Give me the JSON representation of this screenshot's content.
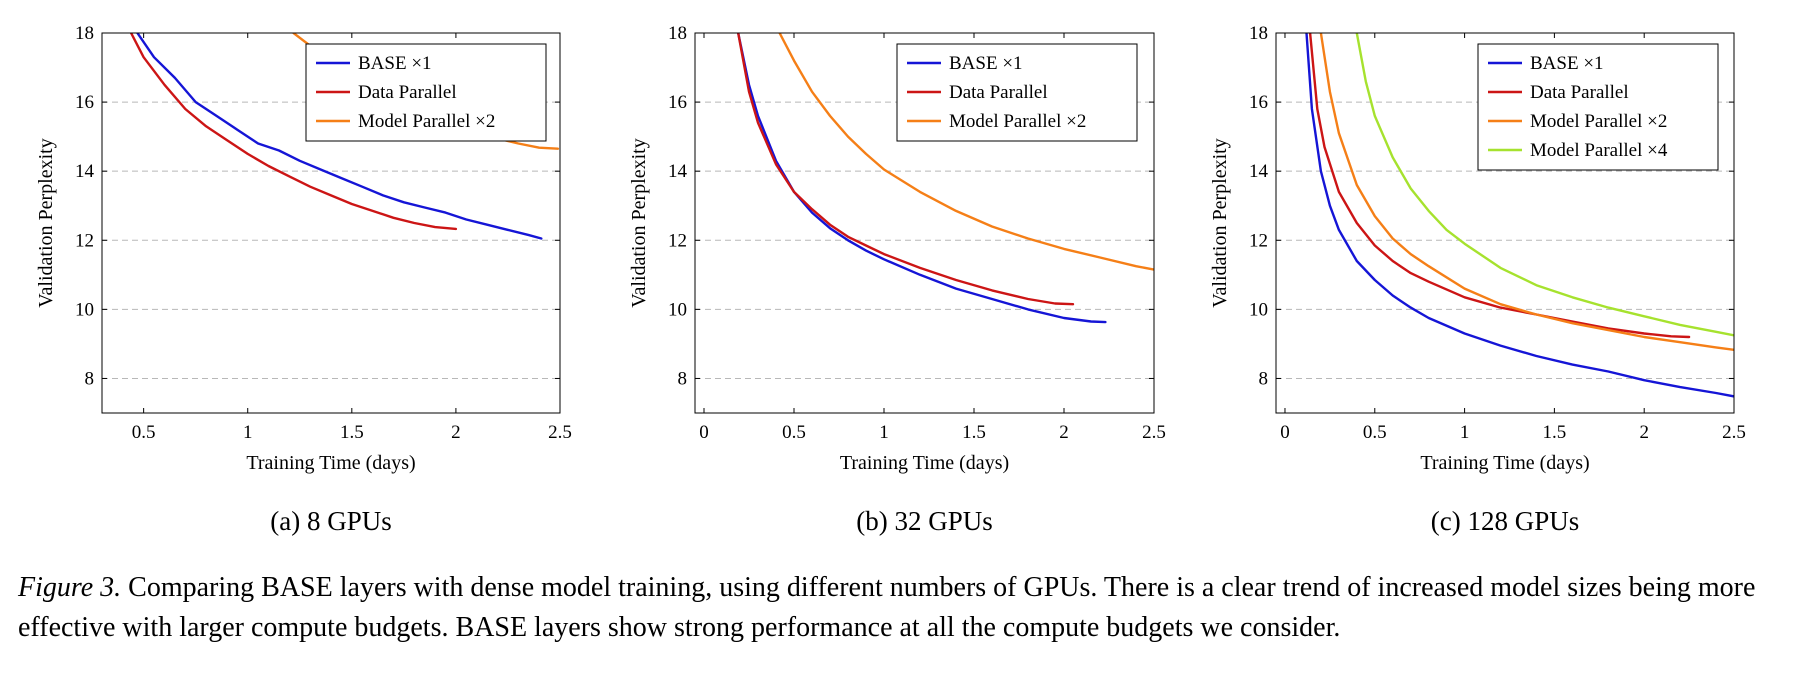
{
  "caption": {
    "label": "Figure 3.",
    "text": " Comparing BASE layers with dense model training, using different numbers of GPUs. There is a clear trend of increased model sizes being more effective with larger compute budgets. BASE layers show strong performance at all the compute budgets we consider."
  },
  "colors": {
    "base": "#1515d6",
    "data_parallel": "#cc1515",
    "model_parallel_2": "#f57f17",
    "model_parallel_4": "#a6e22e"
  },
  "chart_data": [
    {
      "type": "line",
      "subtitle": "(a) 8 GPUs",
      "xlabel": "Training Time (days)",
      "ylabel": "Validation Perplexity",
      "xlim": [
        0.3,
        2.5
      ],
      "ylim": [
        7,
        18
      ],
      "xticks": [
        "0.5",
        "1",
        "1.5",
        "2",
        "2.5"
      ],
      "xtick_values": [
        0.5,
        1,
        1.5,
        2,
        2.5
      ],
      "yticks": [
        "8",
        "10",
        "12",
        "14",
        "16",
        "18"
      ],
      "ytick_values": [
        8,
        10,
        12,
        14,
        16,
        18
      ],
      "grid": "horizontal dashed",
      "legend_position": "top-right",
      "series": [
        {
          "name": "BASE ×1",
          "color_key": "base",
          "x": [
            0.47,
            0.55,
            0.65,
            0.75,
            0.85,
            0.95,
            1.05,
            1.15,
            1.25,
            1.35,
            1.45,
            1.55,
            1.65,
            1.75,
            1.85,
            1.95,
            2.05,
            2.15,
            2.25,
            2.35,
            2.41
          ],
          "y": [
            18.0,
            17.3,
            16.7,
            16.0,
            15.6,
            15.2,
            14.8,
            14.6,
            14.3,
            14.05,
            13.8,
            13.55,
            13.3,
            13.1,
            12.95,
            12.8,
            12.6,
            12.45,
            12.3,
            12.15,
            12.05
          ]
        },
        {
          "name": "Data Parallel",
          "color_key": "data_parallel",
          "x": [
            0.44,
            0.5,
            0.6,
            0.7,
            0.8,
            0.9,
            1.0,
            1.1,
            1.2,
            1.3,
            1.4,
            1.5,
            1.6,
            1.7,
            1.8,
            1.9,
            2.0
          ],
          "y": [
            18.0,
            17.3,
            16.5,
            15.8,
            15.3,
            14.9,
            14.5,
            14.15,
            13.85,
            13.55,
            13.3,
            13.05,
            12.85,
            12.65,
            12.5,
            12.38,
            12.33
          ]
        },
        {
          "name": "Model Parallel ×2",
          "color_key": "model_parallel_2",
          "x": [
            1.22,
            1.35,
            1.5,
            1.65,
            1.8,
            1.95,
            2.1,
            2.2,
            2.3,
            2.4,
            2.49
          ],
          "y": [
            18.0,
            17.4,
            16.8,
            16.3,
            15.9,
            15.55,
            15.2,
            14.95,
            14.8,
            14.68,
            14.65
          ]
        }
      ]
    },
    {
      "type": "line",
      "subtitle": "(b) 32 GPUs",
      "xlabel": "Training Time (days)",
      "ylabel": "Validation Perplexity",
      "xlim": [
        -0.05,
        2.5
      ],
      "ylim": [
        7,
        18
      ],
      "xticks": [
        "0",
        "0.5",
        "1",
        "1.5",
        "2",
        "2.5"
      ],
      "xtick_values": [
        0,
        0.5,
        1,
        1.5,
        2,
        2.5
      ],
      "yticks": [
        "8",
        "10",
        "12",
        "14",
        "16",
        "18"
      ],
      "ytick_values": [
        8,
        10,
        12,
        14,
        16,
        18
      ],
      "grid": "horizontal dashed",
      "legend_position": "top-right",
      "series": [
        {
          "name": "BASE ×1",
          "color_key": "base",
          "x": [
            0.19,
            0.25,
            0.3,
            0.4,
            0.5,
            0.6,
            0.7,
            0.8,
            0.9,
            1.0,
            1.2,
            1.4,
            1.6,
            1.8,
            2.0,
            2.15,
            2.23
          ],
          "y": [
            18.0,
            16.5,
            15.6,
            14.3,
            13.4,
            12.8,
            12.35,
            12.0,
            11.7,
            11.45,
            11.0,
            10.6,
            10.3,
            10.0,
            9.75,
            9.65,
            9.63
          ]
        },
        {
          "name": "Data Parallel",
          "color_key": "data_parallel",
          "x": [
            0.19,
            0.25,
            0.3,
            0.4,
            0.5,
            0.6,
            0.7,
            0.8,
            0.9,
            1.0,
            1.2,
            1.4,
            1.6,
            1.8,
            1.95,
            2.05
          ],
          "y": [
            18.0,
            16.3,
            15.4,
            14.2,
            13.4,
            12.9,
            12.45,
            12.1,
            11.85,
            11.6,
            11.2,
            10.85,
            10.55,
            10.3,
            10.17,
            10.15
          ]
        },
        {
          "name": "Model Parallel ×2",
          "color_key": "model_parallel_2",
          "x": [
            0.42,
            0.5,
            0.6,
            0.7,
            0.8,
            0.9,
            1.0,
            1.2,
            1.4,
            1.6,
            1.8,
            2.0,
            2.2,
            2.4,
            2.5
          ],
          "y": [
            18.0,
            17.2,
            16.3,
            15.6,
            15.0,
            14.5,
            14.05,
            13.4,
            12.85,
            12.4,
            12.05,
            11.75,
            11.5,
            11.25,
            11.15
          ]
        }
      ]
    },
    {
      "type": "line",
      "subtitle": "(c) 128 GPUs",
      "xlabel": "Training Time (days)",
      "ylabel": "Validation Perplexity",
      "xlim": [
        -0.05,
        2.5
      ],
      "ylim": [
        7,
        18
      ],
      "xticks": [
        "0",
        "0.5",
        "1",
        "1.5",
        "2",
        "2.5"
      ],
      "xtick_values": [
        0,
        0.5,
        1,
        1.5,
        2,
        2.5
      ],
      "yticks": [
        "8",
        "10",
        "12",
        "14",
        "16",
        "18"
      ],
      "ytick_values": [
        8,
        10,
        12,
        14,
        16,
        18
      ],
      "grid": "horizontal dashed",
      "legend_position": "top-left",
      "series": [
        {
          "name": "BASE ×1",
          "color_key": "base",
          "x": [
            0.12,
            0.15,
            0.2,
            0.25,
            0.3,
            0.4,
            0.5,
            0.6,
            0.7,
            0.8,
            1.0,
            1.2,
            1.4,
            1.6,
            1.8,
            2.0,
            2.2,
            2.4,
            2.5
          ],
          "y": [
            18.0,
            15.8,
            14.0,
            13.0,
            12.3,
            11.4,
            10.85,
            10.4,
            10.05,
            9.75,
            9.3,
            8.95,
            8.65,
            8.4,
            8.2,
            7.95,
            7.75,
            7.58,
            7.48
          ]
        },
        {
          "name": "Data Parallel",
          "color_key": "data_parallel",
          "x": [
            0.14,
            0.18,
            0.22,
            0.3,
            0.4,
            0.5,
            0.6,
            0.7,
            0.8,
            1.0,
            1.2,
            1.4,
            1.6,
            1.8,
            2.0,
            2.15,
            2.25
          ],
          "y": [
            18.0,
            15.8,
            14.7,
            13.4,
            12.5,
            11.85,
            11.4,
            11.05,
            10.8,
            10.35,
            10.05,
            9.85,
            9.65,
            9.45,
            9.3,
            9.22,
            9.2
          ]
        },
        {
          "name": "Model Parallel ×2",
          "color_key": "model_parallel_2",
          "x": [
            0.2,
            0.25,
            0.3,
            0.4,
            0.5,
            0.6,
            0.7,
            0.8,
            1.0,
            1.2,
            1.4,
            1.6,
            1.8,
            2.0,
            2.2,
            2.4,
            2.5
          ],
          "y": [
            18.0,
            16.3,
            15.1,
            13.6,
            12.7,
            12.05,
            11.6,
            11.25,
            10.6,
            10.15,
            9.85,
            9.6,
            9.4,
            9.2,
            9.05,
            8.9,
            8.83
          ]
        },
        {
          "name": "Model Parallel ×4",
          "color_key": "model_parallel_4",
          "x": [
            0.4,
            0.45,
            0.5,
            0.6,
            0.7,
            0.8,
            0.9,
            1.0,
            1.2,
            1.4,
            1.6,
            1.8,
            2.0,
            2.2,
            2.4,
            2.5
          ],
          "y": [
            18.0,
            16.6,
            15.6,
            14.4,
            13.5,
            12.85,
            12.3,
            11.9,
            11.2,
            10.7,
            10.35,
            10.05,
            9.8,
            9.55,
            9.35,
            9.25
          ]
        }
      ]
    }
  ]
}
